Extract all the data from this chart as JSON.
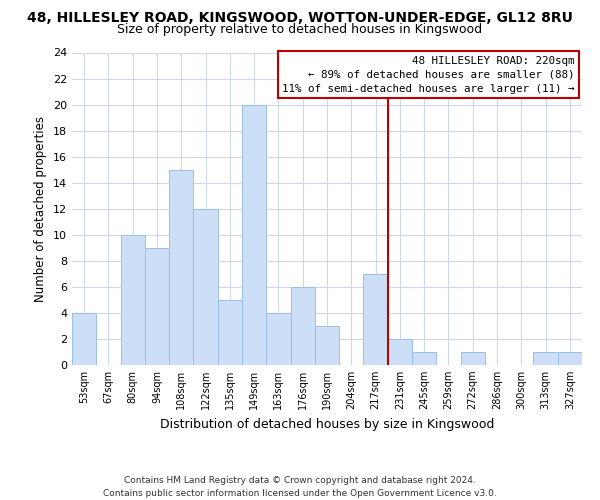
{
  "title": "48, HILLESLEY ROAD, KINGSWOOD, WOTTON-UNDER-EDGE, GL12 8RU",
  "subtitle": "Size of property relative to detached houses in Kingswood",
  "xlabel": "Distribution of detached houses by size in Kingswood",
  "ylabel": "Number of detached properties",
  "bar_labels": [
    "53sqm",
    "67sqm",
    "80sqm",
    "94sqm",
    "108sqm",
    "122sqm",
    "135sqm",
    "149sqm",
    "163sqm",
    "176sqm",
    "190sqm",
    "204sqm",
    "217sqm",
    "231sqm",
    "245sqm",
    "259sqm",
    "272sqm",
    "286sqm",
    "300sqm",
    "313sqm",
    "327sqm"
  ],
  "bar_values": [
    4,
    0,
    10,
    9,
    15,
    12,
    5,
    20,
    4,
    6,
    3,
    0,
    7,
    2,
    1,
    0,
    1,
    0,
    0,
    1,
    1
  ],
  "bar_color": "#ccdff7",
  "bar_edge_color": "#9bbfe0",
  "vline_x": 12.5,
  "vline_color": "#bb0000",
  "ylim": [
    0,
    24
  ],
  "yticks": [
    0,
    2,
    4,
    6,
    8,
    10,
    12,
    14,
    16,
    18,
    20,
    22,
    24
  ],
  "annotation_title": "48 HILLESLEY ROAD: 220sqm",
  "annotation_line1": "← 89% of detached houses are smaller (88)",
  "annotation_line2": "11% of semi-detached houses are larger (11) →",
  "annotation_box_color": "#ffffff",
  "annotation_box_edge": "#bb0000",
  "footer_line1": "Contains HM Land Registry data © Crown copyright and database right 2024.",
  "footer_line2": "Contains public sector information licensed under the Open Government Licence v3.0.",
  "bg_color": "#ffffff",
  "grid_color": "#d0d8e8",
  "title_fontsize": 10,
  "subtitle_fontsize": 9
}
